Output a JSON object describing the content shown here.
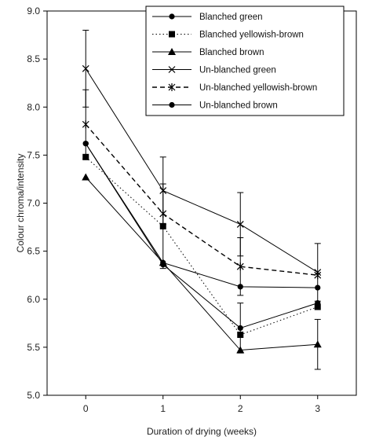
{
  "chart_data": {
    "type": "line",
    "xlabel": "Duration of drying (weeks)",
    "ylabel": "Colour chroma/intensity",
    "x": [
      0,
      1,
      2,
      3
    ],
    "xlim": [
      -0.5,
      3.5
    ],
    "ylim": [
      5.0,
      9.0
    ],
    "yticks": [
      "5.0",
      "5.5",
      "6.0",
      "6.5",
      "7.0",
      "7.5",
      "8.0",
      "8.5",
      "9.0"
    ],
    "xticks": [
      "0",
      "1",
      "2",
      "3"
    ],
    "legend_position": "top-right",
    "series": [
      {
        "name": "Blanched green",
        "values": [
          7.62,
          6.36,
          5.7,
          5.96
        ],
        "errors": [
          0.0,
          0.0,
          0.26,
          0.0
        ],
        "marker": "circle",
        "dash": "solid",
        "color": "#000000"
      },
      {
        "name": "Blanched yellowish-brown",
        "values": [
          7.48,
          6.76,
          5.63,
          5.92
        ],
        "errors": [
          0.0,
          0.44,
          0.0,
          0.0
        ],
        "marker": "square",
        "dash": "dotted",
        "color": "#000000"
      },
      {
        "name": "Blanched brown",
        "values": [
          7.27,
          6.38,
          5.47,
          5.53
        ],
        "errors": [
          0.0,
          0.0,
          0.0,
          0.26
        ],
        "marker": "triangle",
        "dash": "solid",
        "color": "#000000"
      },
      {
        "name": "Un-blanched green",
        "values": [
          8.4,
          7.13,
          6.78,
          6.28
        ],
        "errors": [
          0.4,
          0.35,
          0.33,
          0.3
        ],
        "marker": "x",
        "dash": "solid",
        "color": "#000000"
      },
      {
        "name": "Un-blanched yellowish-brown",
        "values": [
          7.82,
          6.89,
          6.34,
          6.25
        ],
        "errors": [
          0.36,
          0.0,
          0.3,
          0.0
        ],
        "marker": "star",
        "dash": "dashed",
        "color": "#000000"
      },
      {
        "name": "Un-blanched brown",
        "values": [
          7.62,
          6.38,
          6.13,
          6.12
        ],
        "errors": [
          0.0,
          0.0,
          0.0,
          0.0
        ],
        "marker": "circle",
        "dash": "solid",
        "color": "#000000"
      }
    ]
  }
}
